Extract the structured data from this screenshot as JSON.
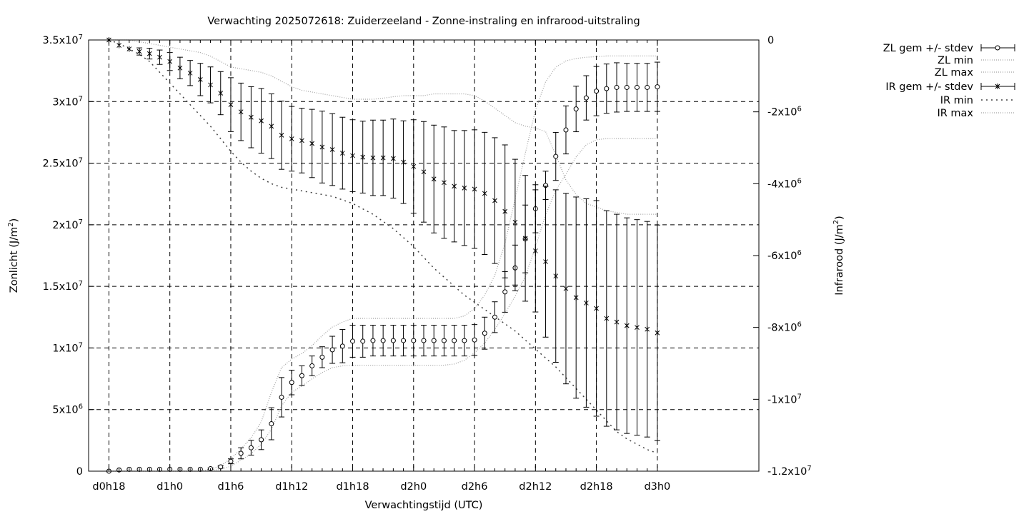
{
  "chart_data": {
    "type": "line",
    "title": "Verwachting 2025072618: Zuiderzeeland - Zonne-instraling en infrarood-uitstraling",
    "xlabel": "Verwachtingstijd (UTC)",
    "ylabel": {
      "base": "Zonlicht (J/m",
      "sup": "2",
      "tail": ")"
    },
    "y2label": {
      "base": "Infrarood (J/m",
      "sup": "2",
      "tail": ")"
    },
    "x_range": [
      -2,
      64
    ],
    "x_unit": "hours",
    "x_ticks": [
      {
        "h": 0,
        "label": "d0h18"
      },
      {
        "h": 6,
        "label": "d1h0"
      },
      {
        "h": 12,
        "label": "d1h6"
      },
      {
        "h": 18,
        "label": "d1h12"
      },
      {
        "h": 24,
        "label": "d1h18"
      },
      {
        "h": 30,
        "label": "d2h0"
      },
      {
        "h": 36,
        "label": "d2h6"
      },
      {
        "h": 42,
        "label": "d2h12"
      },
      {
        "h": 48,
        "label": "d2h18"
      },
      {
        "h": 54,
        "label": "d3h0"
      }
    ],
    "y_range": [
      0,
      35000000
    ],
    "y_ticks": [
      {
        "v": 0,
        "label": "0",
        "exp": ""
      },
      {
        "v": 5000000,
        "label": "5x10",
        "exp": "6"
      },
      {
        "v": 10000000,
        "label": "1x10",
        "exp": "7"
      },
      {
        "v": 15000000,
        "label": "1.5x10",
        "exp": "7"
      },
      {
        "v": 20000000,
        "label": "2x10",
        "exp": "7"
      },
      {
        "v": 25000000,
        "label": "2.5x10",
        "exp": "7"
      },
      {
        "v": 30000000,
        "label": "3x10",
        "exp": "7"
      },
      {
        "v": 35000000,
        "label": "3.5x10",
        "exp": "7"
      }
    ],
    "y2_range": [
      -12000000,
      0
    ],
    "y2_ticks": [
      {
        "v": 0,
        "label": "0",
        "exp": ""
      },
      {
        "v": -2000000,
        "label": "-2x10",
        "exp": "6"
      },
      {
        "v": -4000000,
        "label": "-4x10",
        "exp": "6"
      },
      {
        "v": -6000000,
        "label": "-6x10",
        "exp": "6"
      },
      {
        "v": -8000000,
        "label": "-8x10",
        "exp": "6"
      },
      {
        "v": -10000000,
        "label": "-1x10",
        "exp": "7"
      },
      {
        "v": -12000000,
        "label": "-1.2x10",
        "exp": "7"
      }
    ],
    "grid": true,
    "legend_position": "outside-top-right",
    "legend": {
      "zl_mean": "ZL gem +/- stdev",
      "zl_min": "ZL min",
      "zl_max": "ZL max",
      "ir_mean": "IR gem +/- stdev",
      "ir_min": "IR min",
      "ir_max": "IR max"
    },
    "colors": {
      "axis": "#000000",
      "grid": "#000000",
      "minmax": "#a0a0a0",
      "ir_min": "#404040"
    },
    "x": [
      0,
      1,
      2,
      3,
      4,
      5,
      6,
      7,
      8,
      9,
      10,
      11,
      12,
      13,
      14,
      15,
      16,
      17,
      18,
      19,
      20,
      21,
      22,
      23,
      24,
      25,
      26,
      27,
      28,
      29,
      30,
      31,
      32,
      33,
      34,
      35,
      36,
      37,
      38,
      39,
      40,
      41,
      42,
      43,
      44,
      45,
      46,
      47,
      48,
      49,
      50,
      51,
      52,
      53,
      54
    ],
    "zl_series": {
      "mean": [
        0,
        0.1,
        0.15,
        0.15,
        0.15,
        0.15,
        0.15,
        0.15,
        0.15,
        0.15,
        0.2,
        0.35,
        0.8,
        1.45,
        1.9,
        2.55,
        3.85,
        6.0,
        7.2,
        7.75,
        8.55,
        9.25,
        9.85,
        10.15,
        10.55,
        10.55,
        10.6,
        10.6,
        10.6,
        10.6,
        10.6,
        10.6,
        10.6,
        10.6,
        10.6,
        10.6,
        10.65,
        11.2,
        12.5,
        14.55,
        16.5,
        18.85,
        21.3,
        23.2,
        25.55,
        27.7,
        29.4,
        30.3,
        30.85,
        31.05,
        31.15,
        31.15,
        31.15,
        31.15,
        31.2
      ],
      "stdev": [
        0,
        0,
        0,
        0,
        0,
        0,
        0,
        0,
        0,
        0,
        0.05,
        0.1,
        0.2,
        0.45,
        0.6,
        0.8,
        1.3,
        1.6,
        1.0,
        0.8,
        0.8,
        0.85,
        1.1,
        1.35,
        1.3,
        1.3,
        1.25,
        1.25,
        1.25,
        1.25,
        1.25,
        1.25,
        1.25,
        1.25,
        1.25,
        1.25,
        1.25,
        1.3,
        1.25,
        1.65,
        1.85,
        2.75,
        1.95,
        1.15,
        1.95,
        1.95,
        1.85,
        1.8,
        2.0,
        2.0,
        2.0,
        1.95,
        1.95,
        1.95,
        2.0
      ],
      "min": [
        0,
        0,
        0,
        0,
        0,
        0,
        0,
        0,
        0,
        0,
        0.05,
        0.15,
        0.4,
        0.9,
        1.4,
        2.2,
        3.4,
        5.3,
        6.4,
        6.9,
        7.5,
        8.0,
        8.4,
        8.55,
        8.6,
        8.6,
        8.6,
        8.6,
        8.6,
        8.6,
        8.6,
        8.6,
        8.6,
        8.6,
        8.7,
        9.0,
        9.6,
        10.4,
        11.5,
        12.8,
        14.2,
        15.8,
        18.2,
        20.8,
        22.8,
        24.1,
        25.5,
        26.5,
        26.9,
        27.0,
        27.0,
        27.0,
        27.0,
        27.0,
        27.0
      ],
      "max": [
        0,
        0,
        0,
        0,
        0,
        0,
        0,
        0,
        0,
        0,
        0.15,
        0.45,
        1.0,
        1.8,
        2.7,
        4.0,
        6.4,
        8.4,
        9.1,
        9.55,
        10.2,
        11.0,
        11.7,
        12.1,
        12.4,
        12.4,
        12.4,
        12.4,
        12.4,
        12.4,
        12.4,
        12.4,
        12.4,
        12.4,
        12.4,
        12.6,
        13.2,
        14.3,
        15.9,
        18.5,
        22.1,
        25.8,
        29.3,
        31.6,
        32.8,
        33.3,
        33.5,
        33.6,
        33.65,
        33.7,
        33.7,
        33.7,
        33.7,
        33.7,
        33.7
      ],
      "unit_scale": 1000000
    },
    "ir_series": {
      "mean": [
        0,
        -0.15,
        -0.25,
        -0.32,
        -0.38,
        -0.48,
        -0.6,
        -0.78,
        -0.92,
        -1.1,
        -1.25,
        -1.48,
        -1.8,
        -2.0,
        -2.15,
        -2.25,
        -2.4,
        -2.65,
        -2.75,
        -2.8,
        -2.88,
        -2.98,
        -3.05,
        -3.15,
        -3.22,
        -3.26,
        -3.28,
        -3.28,
        -3.3,
        -3.4,
        -3.52,
        -3.67,
        -3.87,
        -3.97,
        -4.07,
        -4.12,
        -4.15,
        -4.27,
        -4.47,
        -4.77,
        -5.07,
        -5.52,
        -5.87,
        -6.17,
        -6.57,
        -6.92,
        -7.17,
        -7.32,
        -7.47,
        -7.75,
        -7.85,
        -7.95,
        -8.0,
        -8.05,
        -8.15
      ],
      "stdev": [
        0,
        0,
        0,
        0.1,
        0.15,
        0.2,
        0.25,
        0.3,
        0.35,
        0.45,
        0.5,
        0.6,
        0.75,
        0.8,
        0.85,
        0.9,
        0.9,
        0.95,
        0.9,
        0.9,
        0.95,
        1.0,
        1.0,
        1.0,
        1.0,
        1.0,
        1.05,
        1.05,
        1.1,
        1.15,
        1.3,
        1.4,
        1.5,
        1.55,
        1.55,
        1.6,
        1.65,
        1.7,
        1.75,
        1.85,
        1.75,
        1.75,
        1.7,
        2.1,
        2.4,
        2.65,
        2.8,
        2.9,
        3.0,
        3.0,
        3.0,
        3.0,
        3.0,
        3.0,
        3.0
      ],
      "min": [
        0,
        -0.1,
        -0.25,
        -0.4,
        -0.6,
        -0.9,
        -1.2,
        -1.5,
        -1.8,
        -2.1,
        -2.4,
        -2.75,
        -3.1,
        -3.4,
        -3.65,
        -3.85,
        -4.0,
        -4.1,
        -4.15,
        -4.2,
        -4.25,
        -4.3,
        -4.35,
        -4.45,
        -4.55,
        -4.7,
        -4.85,
        -5.05,
        -5.25,
        -5.5,
        -5.75,
        -6.05,
        -6.35,
        -6.6,
        -6.85,
        -7.1,
        -7.3,
        -7.5,
        -7.7,
        -7.9,
        -8.1,
        -8.35,
        -8.6,
        -8.85,
        -9.1,
        -9.4,
        -9.7,
        -10.0,
        -10.3,
        -10.6,
        -10.9,
        -11.1,
        -11.25,
        -11.4,
        -11.5
      ],
      "max": [
        0,
        0,
        0,
        -0.05,
        -0.1,
        -0.15,
        -0.2,
        -0.25,
        -0.3,
        -0.35,
        -0.45,
        -0.6,
        -0.75,
        -0.8,
        -0.85,
        -0.9,
        -1.0,
        -1.15,
        -1.3,
        -1.4,
        -1.45,
        -1.5,
        -1.55,
        -1.6,
        -1.65,
        -1.65,
        -1.65,
        -1.62,
        -1.58,
        -1.55,
        -1.55,
        -1.55,
        -1.5,
        -1.5,
        -1.5,
        -1.5,
        -1.55,
        -1.7,
        -1.9,
        -2.1,
        -2.3,
        -2.4,
        -2.45,
        -2.55,
        -3.2,
        -3.9,
        -4.3,
        -4.55,
        -4.65,
        -4.75,
        -4.8,
        -4.85,
        -4.85,
        -4.85,
        -4.85
      ],
      "unit_scale": 1000000
    }
  }
}
